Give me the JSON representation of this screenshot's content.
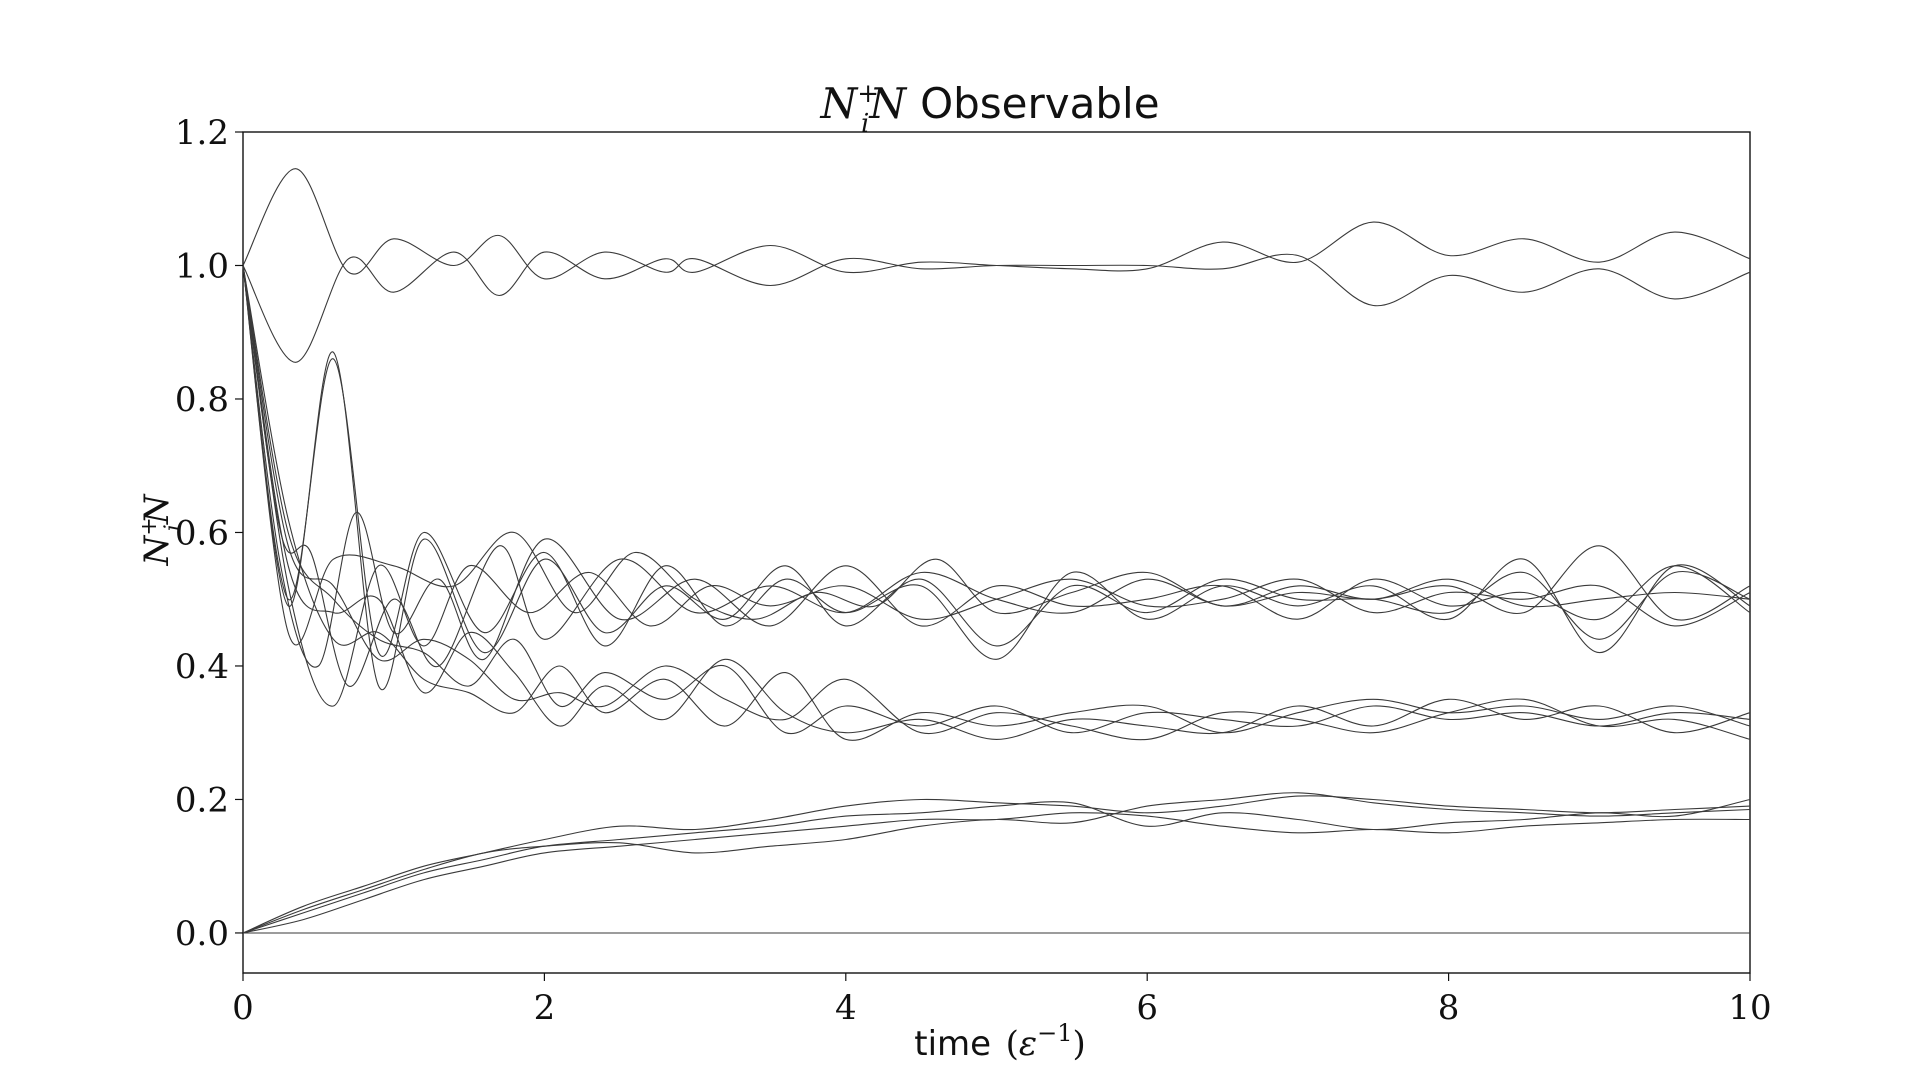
{
  "chart_data": {
    "type": "line",
    "title": "N_i^+N Observable",
    "title_math": "N",
    "title_sub": "i",
    "title_sup": "+",
    "title_math2": "N",
    "title_text": "Observable",
    "xlabel": "time (ε⁻¹)",
    "xlabel_text": "time",
    "xlabel_paren_open": "(",
    "xlabel_eps": "ε",
    "xlabel_sup": "−1",
    "xlabel_paren_close": ")",
    "ylabel": "N_i^+N",
    "ylabel_main": "N",
    "ylabel_sub": "i",
    "ylabel_sup": "+",
    "ylabel_main2": "N",
    "xlim": [
      0,
      10
    ],
    "ylim": [
      -0.06,
      1.2
    ],
    "xticks": [
      0,
      2,
      4,
      6,
      8,
      10
    ],
    "xtick_labels": [
      "0",
      "2",
      "4",
      "6",
      "8",
      "10"
    ],
    "yticks": [
      0.0,
      0.2,
      0.4,
      0.6,
      0.8,
      1.0,
      1.2
    ],
    "ytick_labels": [
      "0.0",
      "0.2",
      "0.4",
      "0.6",
      "0.8",
      "1.0",
      "1.2"
    ],
    "grid": false,
    "line_color": "#3a3a3a",
    "series": [
      {
        "x": [
          0,
          0.35,
          0.7,
          1.0,
          1.4,
          1.7,
          2.0,
          2.4,
          2.8,
          3.0,
          3.5,
          4.0,
          4.5,
          5.0,
          5.5,
          6.0,
          6.5,
          7.0,
          7.5,
          8.0,
          8.5,
          9.0,
          9.5,
          10.0
        ],
        "y": [
          1.0,
          1.145,
          0.99,
          1.04,
          1.0,
          1.045,
          0.98,
          1.02,
          0.99,
          1.01,
          0.97,
          1.01,
          0.995,
          1.0,
          1.0,
          1.0,
          0.995,
          1.015,
          0.94,
          0.985,
          0.96,
          0.995,
          0.95,
          0.99
        ]
      },
      {
        "x": [
          0,
          0.35,
          0.7,
          1.0,
          1.4,
          1.7,
          2.0,
          2.4,
          2.8,
          3.0,
          3.5,
          4.0,
          4.5,
          5.0,
          5.5,
          6.0,
          6.5,
          7.0,
          7.5,
          8.0,
          8.5,
          9.0,
          9.5,
          10.0
        ],
        "y": [
          1.0,
          0.855,
          1.01,
          0.96,
          1.02,
          0.955,
          1.02,
          0.98,
          1.01,
          0.99,
          1.03,
          0.99,
          1.005,
          1.0,
          0.995,
          0.995,
          1.035,
          1.005,
          1.065,
          1.015,
          1.04,
          1.005,
          1.05,
          1.01
        ]
      },
      {
        "x": [
          0,
          0.3,
          0.6,
          0.9,
          1.2,
          1.6,
          2.0,
          2.4,
          2.8,
          3.2,
          3.6,
          4.0,
          4.5,
          5.0,
          5.5,
          6.0,
          6.5,
          7.0,
          7.5,
          8.0,
          8.5,
          9.0,
          9.5,
          10.0
        ],
        "y": [
          1.0,
          0.5,
          0.86,
          0.42,
          0.6,
          0.45,
          0.57,
          0.43,
          0.55,
          0.46,
          0.53,
          0.48,
          0.52,
          0.41,
          0.54,
          0.47,
          0.52,
          0.49,
          0.52,
          0.47,
          0.56,
          0.42,
          0.55,
          0.49
        ]
      },
      {
        "x": [
          0,
          0.3,
          0.6,
          0.9,
          1.2,
          1.6,
          2.0,
          2.4,
          2.8,
          3.2,
          3.6,
          4.0,
          4.5,
          5.0,
          5.5,
          6.0,
          6.5,
          7.0,
          7.5,
          8.0,
          8.5,
          9.0,
          9.5,
          10.0
        ],
        "y": [
          1.0,
          0.49,
          0.87,
          0.37,
          0.59,
          0.42,
          0.56,
          0.45,
          0.52,
          0.47,
          0.55,
          0.46,
          0.53,
          0.43,
          0.52,
          0.48,
          0.53,
          0.5,
          0.5,
          0.48,
          0.54,
          0.44,
          0.54,
          0.5
        ]
      },
      {
        "x": [
          0,
          0.25,
          0.45,
          0.7,
          1.0,
          1.3,
          1.7,
          2.0,
          2.5,
          3.0,
          3.5,
          4.0,
          4.5,
          5.0,
          5.5,
          6.0,
          6.5,
          7.0,
          7.5,
          8.0,
          8.5,
          9.0,
          9.5,
          10.0
        ],
        "y": [
          1.0,
          0.6,
          0.57,
          0.37,
          0.5,
          0.4,
          0.58,
          0.44,
          0.56,
          0.48,
          0.52,
          0.48,
          0.54,
          0.5,
          0.48,
          0.53,
          0.49,
          0.51,
          0.5,
          0.52,
          0.48,
          0.58,
          0.47,
          0.52
        ]
      },
      {
        "x": [
          0,
          0.25,
          0.5,
          0.75,
          1.0,
          1.3,
          1.6,
          2.0,
          2.5,
          3.0,
          3.5,
          4.0,
          4.5,
          5.0,
          5.5,
          6.0,
          6.5,
          7.0,
          7.5,
          8.0,
          8.5,
          9.0,
          9.5,
          10.0
        ],
        "y": [
          1.0,
          0.55,
          0.4,
          0.63,
          0.45,
          0.53,
          0.41,
          0.59,
          0.47,
          0.53,
          0.46,
          0.55,
          0.46,
          0.52,
          0.49,
          0.5,
          0.52,
          0.47,
          0.53,
          0.49,
          0.51,
          0.47,
          0.55,
          0.48
        ]
      },
      {
        "x": [
          0,
          0.3,
          0.6,
          0.9,
          1.2,
          1.5,
          1.9,
          2.3,
          2.7,
          3.1,
          3.5,
          4.0,
          4.5,
          5.0,
          5.5,
          6.0,
          6.5,
          7.0,
          7.5,
          8.0,
          8.5,
          9.0,
          9.5,
          10.0
        ],
        "y": [
          1.0,
          0.52,
          0.34,
          0.55,
          0.43,
          0.55,
          0.48,
          0.54,
          0.46,
          0.52,
          0.49,
          0.52,
          0.47,
          0.5,
          0.53,
          0.49,
          0.5,
          0.53,
          0.48,
          0.51,
          0.5,
          0.52,
          0.46,
          0.51
        ]
      },
      {
        "x": [
          0,
          0.3,
          0.6,
          1.0,
          1.4,
          1.8,
          2.2,
          2.6,
          3.0,
          3.4,
          3.8,
          4.2,
          4.6,
          5.0,
          5.5,
          6.0,
          6.5,
          7.0,
          7.5,
          8.0,
          8.5,
          9.0,
          9.5,
          10.0
        ],
        "y": [
          1.0,
          0.45,
          0.56,
          0.55,
          0.52,
          0.6,
          0.48,
          0.57,
          0.5,
          0.47,
          0.51,
          0.49,
          0.56,
          0.48,
          0.51,
          0.54,
          0.49,
          0.52,
          0.5,
          0.53,
          0.49,
          0.5,
          0.51,
          0.5
        ]
      },
      {
        "x": [
          0,
          0.3,
          0.6,
          0.9,
          1.2,
          1.5,
          1.8,
          2.1,
          2.4,
          2.8,
          3.2,
          3.6,
          4.0,
          4.5,
          5.0,
          5.5,
          6.0,
          6.5,
          7.0,
          7.5,
          8.0,
          8.5,
          9.0,
          9.5,
          10.0
        ],
        "y": [
          1.0,
          0.6,
          0.5,
          0.44,
          0.42,
          0.37,
          0.44,
          0.34,
          0.39,
          0.35,
          0.4,
          0.3,
          0.34,
          0.31,
          0.34,
          0.3,
          0.33,
          0.32,
          0.31,
          0.34,
          0.32,
          0.33,
          0.31,
          0.33,
          0.32
        ]
      },
      {
        "x": [
          0,
          0.3,
          0.6,
          0.9,
          1.2,
          1.5,
          1.8,
          2.1,
          2.4,
          2.8,
          3.2,
          3.6,
          4.0,
          4.5,
          5.0,
          5.5,
          6.0,
          6.5,
          7.0,
          7.5,
          8.0,
          8.5,
          9.0,
          9.5,
          10.0
        ],
        "y": [
          1.0,
          0.62,
          0.44,
          0.45,
          0.38,
          0.36,
          0.33,
          0.4,
          0.33,
          0.38,
          0.31,
          0.39,
          0.29,
          0.33,
          0.31,
          0.33,
          0.34,
          0.3,
          0.33,
          0.35,
          0.33,
          0.34,
          0.32,
          0.34,
          0.31
        ]
      },
      {
        "x": [
          0,
          0.3,
          0.6,
          0.9,
          1.2,
          1.5,
          1.8,
          2.1,
          2.4,
          2.8,
          3.2,
          3.6,
          4.0,
          4.5,
          5.0,
          5.5,
          6.0,
          6.5,
          7.0,
          7.5,
          8.0,
          8.5,
          9.0,
          9.5,
          10.0
        ],
        "y": [
          1.0,
          0.55,
          0.48,
          0.5,
          0.36,
          0.45,
          0.39,
          0.31,
          0.37,
          0.32,
          0.41,
          0.33,
          0.3,
          0.32,
          0.29,
          0.32,
          0.31,
          0.3,
          0.34,
          0.31,
          0.35,
          0.32,
          0.34,
          0.3,
          0.33
        ]
      },
      {
        "x": [
          0,
          0.3,
          0.6,
          0.9,
          1.2,
          1.5,
          1.8,
          2.1,
          2.4,
          2.8,
          3.2,
          3.6,
          4.0,
          4.5,
          5.0,
          5.5,
          6.0,
          6.5,
          7.0,
          7.5,
          8.0,
          8.5,
          9.0,
          9.5,
          10.0
        ],
        "y": [
          1.0,
          0.58,
          0.52,
          0.41,
          0.44,
          0.41,
          0.35,
          0.36,
          0.34,
          0.4,
          0.35,
          0.32,
          0.38,
          0.3,
          0.33,
          0.31,
          0.29,
          0.33,
          0.32,
          0.3,
          0.33,
          0.35,
          0.31,
          0.32,
          0.29
        ]
      },
      {
        "x": [
          0,
          0.4,
          0.8,
          1.2,
          1.6,
          2.0,
          2.5,
          3.0,
          3.5,
          4.0,
          4.5,
          5.0,
          5.5,
          6.0,
          6.5,
          7.0,
          7.5,
          8.0,
          8.5,
          9.0,
          9.5,
          10.0
        ],
        "y": [
          0.0,
          0.04,
          0.07,
          0.1,
          0.12,
          0.14,
          0.16,
          0.155,
          0.17,
          0.19,
          0.2,
          0.195,
          0.19,
          0.18,
          0.19,
          0.205,
          0.2,
          0.19,
          0.185,
          0.18,
          0.185,
          0.19
        ]
      },
      {
        "x": [
          0,
          0.4,
          0.8,
          1.2,
          1.6,
          2.0,
          2.5,
          3.0,
          3.5,
          4.0,
          4.5,
          5.0,
          5.5,
          6.0,
          6.5,
          7.0,
          7.5,
          8.0,
          8.5,
          9.0,
          9.5,
          10.0
        ],
        "y": [
          0.0,
          0.03,
          0.06,
          0.09,
          0.11,
          0.13,
          0.14,
          0.15,
          0.16,
          0.175,
          0.18,
          0.19,
          0.195,
          0.16,
          0.18,
          0.17,
          0.155,
          0.165,
          0.17,
          0.18,
          0.175,
          0.2
        ]
      },
      {
        "x": [
          0,
          0.4,
          0.8,
          1.2,
          1.6,
          2.0,
          2.5,
          3.0,
          3.5,
          4.0,
          4.5,
          5.0,
          5.5,
          6.0,
          6.5,
          7.0,
          7.5,
          8.0,
          8.5,
          9.0,
          9.5,
          10.0
        ],
        "y": [
          0.0,
          0.02,
          0.05,
          0.08,
          0.1,
          0.12,
          0.13,
          0.14,
          0.15,
          0.16,
          0.17,
          0.17,
          0.18,
          0.175,
          0.16,
          0.15,
          0.155,
          0.15,
          0.16,
          0.165,
          0.17,
          0.17
        ]
      },
      {
        "x": [
          0,
          0.4,
          0.8,
          1.2,
          1.6,
          2.0,
          2.5,
          3.0,
          3.5,
          4.0,
          4.5,
          5.0,
          5.5,
          6.0,
          6.5,
          7.0,
          7.5,
          8.0,
          8.5,
          9.0,
          9.5,
          10.0
        ],
        "y": [
          0.0,
          0.035,
          0.065,
          0.095,
          0.12,
          0.13,
          0.135,
          0.12,
          0.13,
          0.14,
          0.16,
          0.17,
          0.165,
          0.19,
          0.2,
          0.21,
          0.195,
          0.185,
          0.18,
          0.175,
          0.18,
          0.185
        ]
      },
      {
        "x": [
          0,
          10
        ],
        "y": [
          0.0,
          0.0
        ]
      }
    ]
  }
}
